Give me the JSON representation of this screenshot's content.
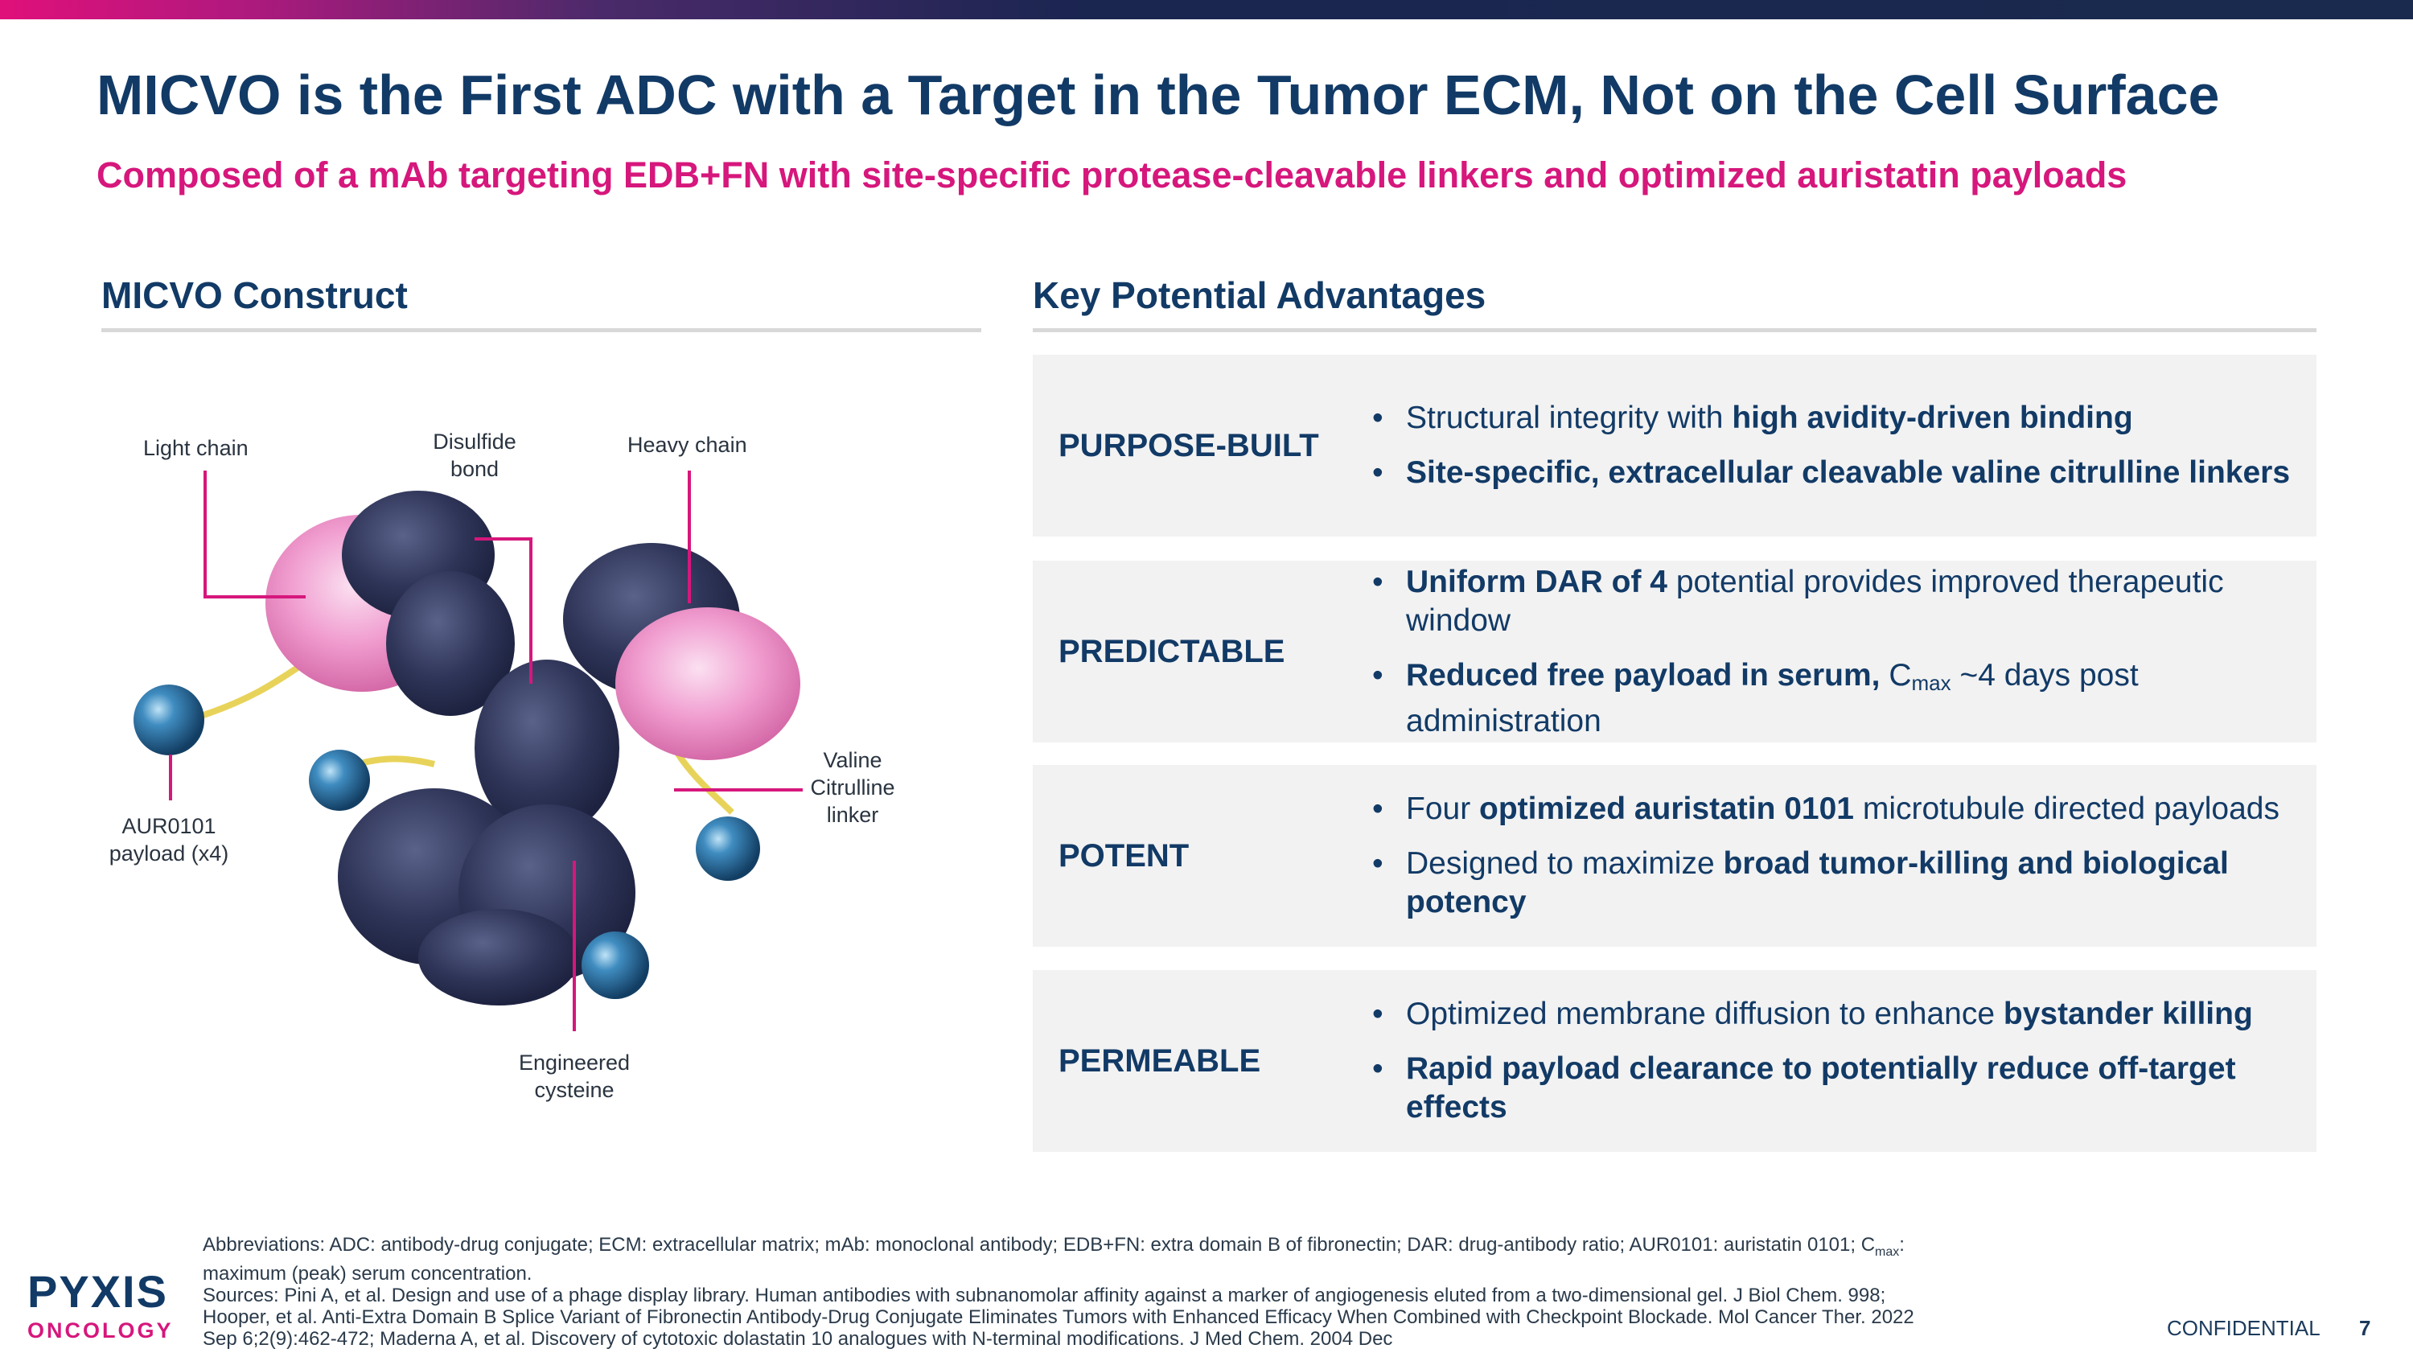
{
  "slide": {
    "title": "MICVO is the First ADC with a Target in the Tumor ECM, Not on the Cell Surface",
    "subtitle": "Composed of a mAb targeting EDB+FN with site-specific protease-cleavable linkers and optimized auristatin payloads"
  },
  "construct": {
    "heading": "MICVO Construct",
    "labels": {
      "light_chain": "Light chain",
      "disulfide_1": "Disulfide",
      "disulfide_2": "bond",
      "heavy_chain": "Heavy chain",
      "valine_1": "Valine",
      "valine_2": "Citrulline",
      "valine_3": "linker",
      "payload_1": "AUR0101",
      "payload_2": "payload (x4)",
      "cysteine_1": "Engineered",
      "cysteine_2": "cysteine"
    }
  },
  "advantages": {
    "heading": "Key Potential Advantages",
    "rows": [
      {
        "label": "PURPOSE-BUILT",
        "b1": {
          "t1": "Structural integrity with ",
          "b": "high avidity-driven binding"
        },
        "b2": {
          "b": "Site-specific, extracellular cleavable valine citrulline linkers"
        }
      },
      {
        "label": "PREDICTABLE",
        "b1": {
          "b": "Uniform DAR of 4",
          "t2": " potential provides improved therapeutic window"
        },
        "b2": {
          "b": "Reduced free payload in serum,",
          "t2": " C",
          "sub": "max",
          "t3": " ~4 days post administration"
        }
      },
      {
        "label": "POTENT",
        "b1": {
          "t1": "Four ",
          "b": "optimized auristatin 0101",
          "t2": " microtubule directed payloads"
        },
        "b2": {
          "t1": "Designed to maximize ",
          "b": "broad tumor-killing and biological potency"
        }
      },
      {
        "label": "PERMEABLE",
        "b1": {
          "t1": "Optimized membrane diffusion to enhance ",
          "b": "bystander killing"
        },
        "b2": {
          "b": "Rapid payload clearance to potentially reduce off-target effects"
        }
      }
    ]
  },
  "footer": {
    "abbr_1": "Abbreviations: ADC: antibody-drug conjugate; ECM: extracellular matrix; mAb: monoclonal antibody; EDB+FN: extra domain B of fibronectin; DAR: drug-antibody ratio; AUR0101: auristatin 0101; C",
    "abbr_sub": "max",
    "abbr_2": ": maximum (peak) serum concentration.",
    "sources": "Sources: Pini A, et al. Design and use of a phage display library. Human antibodies with subnanomolar affinity against a marker of angiogenesis eluted from a two-dimensional gel. J Biol Chem. 998; Hooper, et al. Anti-Extra Domain B Splice Variant of Fibronectin Antibody-Drug Conjugate Eliminates Tumors with Enhanced Efficacy When Combined with Checkpoint Blockade. Mol Cancer Ther. 2022 Sep 6;2(9):462-472; Maderna A, et al. Discovery of cytotoxic dolastatin 10 analogues with N-terminal modifications. J Med Chem. 2004 Dec",
    "logo_top": "PYXIS",
    "logo_bottom": "ONCOLOGY",
    "confidential": "CONFIDENTIAL",
    "page": "7"
  },
  "colors": {
    "navy": "#123a66",
    "magenta": "#d6177c",
    "panel_bg": "#f2f2f2",
    "antibody_dark": "#2f3558",
    "antibody_pink": "#f0a6d2",
    "payload_blue": "#1e5f8c",
    "linker_yellow": "#e8d35a"
  }
}
